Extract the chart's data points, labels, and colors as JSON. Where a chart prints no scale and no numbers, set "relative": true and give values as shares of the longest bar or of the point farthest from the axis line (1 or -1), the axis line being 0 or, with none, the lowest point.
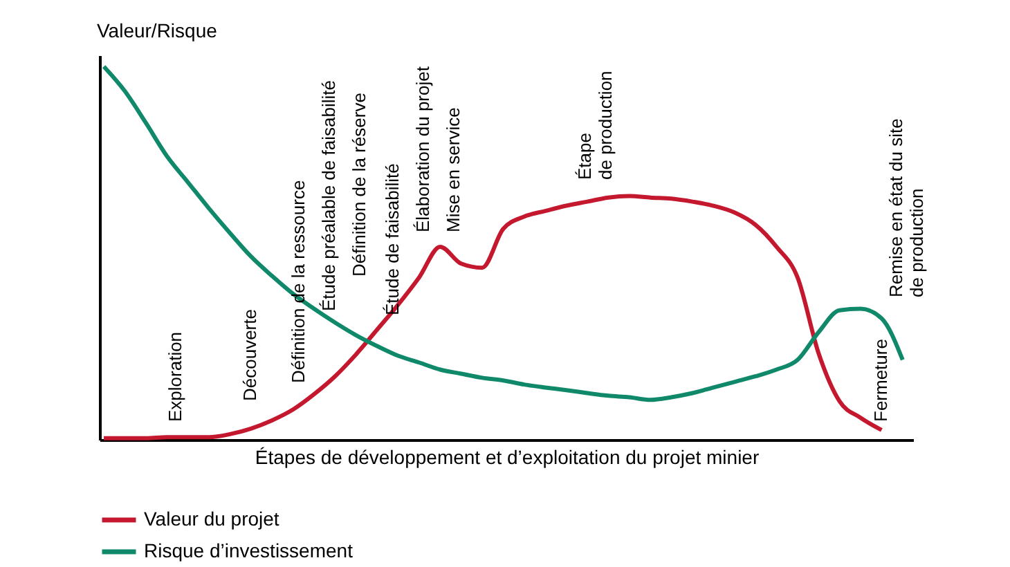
{
  "chart_data": {
    "type": "line",
    "relative": true,
    "ylabel": "Valeur/Risque",
    "xlabel": "Étapes de développement et d’exploitation du projet minier",
    "legend": "bottom",
    "grid": false,
    "marker": "none",
    "line_style": "solid",
    "categories": [
      null,
      null,
      null,
      null,
      null,
      null,
      null,
      null,
      null,
      null,
      null,
      null,
      null,
      null,
      null,
      null,
      null,
      null,
      null,
      null,
      null,
      null,
      null,
      null,
      null,
      null,
      null,
      null,
      null,
      null,
      null,
      null,
      null,
      null,
      null,
      null,
      null,
      null,
      null
    ],
    "series": [
      {
        "name": "Valeur du projet",
        "color": "#c4182f",
        "values": [
          0.004,
          0.004,
          0.004,
          0.007,
          0.007,
          0.007,
          0.015,
          0.03,
          0.052,
          0.081,
          0.122,
          0.17,
          0.229,
          0.295,
          0.362,
          0.435,
          0.517,
          0.472,
          0.461,
          0.565,
          0.598,
          0.613,
          0.627,
          0.638,
          0.649,
          0.653,
          0.649,
          0.646,
          0.638,
          0.627,
          0.609,
          0.576,
          0.517,
          0.435,
          0.232,
          0.103,
          0.059,
          0.026,
          null
        ]
      },
      {
        "name": "Risque d’investissement",
        "color": "#10896a",
        "values": [
          1.0,
          0.934,
          0.849,
          0.76,
          0.69,
          0.62,
          0.554,
          0.491,
          0.439,
          0.391,
          0.351,
          0.314,
          0.28,
          0.251,
          0.225,
          0.207,
          0.188,
          0.177,
          0.166,
          0.159,
          0.148,
          0.14,
          0.133,
          0.125,
          0.118,
          0.114,
          0.107,
          0.114,
          0.125,
          0.14,
          0.155,
          0.17,
          0.188,
          0.214,
          0.288,
          0.347,
          0.351,
          0.325,
          0.214
        ]
      }
    ],
    "annotations": [
      "Exploration",
      "Découverte",
      "Définition de la ressource",
      "Étude préalable de faisabilité",
      "Définition de la réserve",
      "Étude de faisabilité",
      "Élaboration du projet",
      "Mise en service",
      "Étape\nde production",
      "Fermeture",
      "Remise en état du site\nde production"
    ]
  }
}
